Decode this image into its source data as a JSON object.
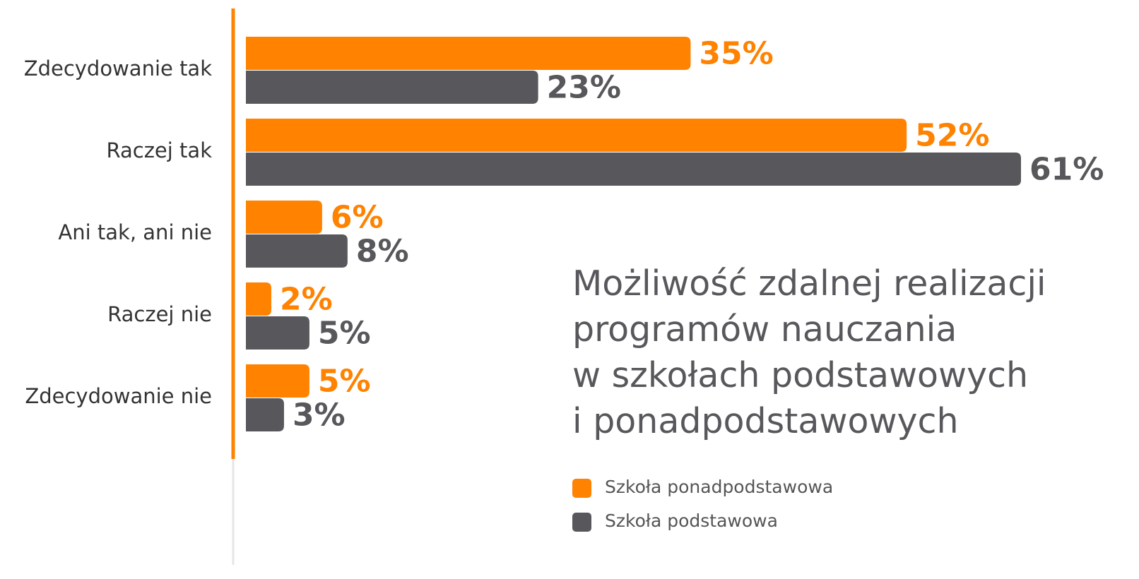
{
  "chart_data": {
    "type": "bar",
    "orientation": "horizontal",
    "title": [
      "Możliwość zdalnej realizacji",
      "programów nauczania",
      "w szkołach podstawowych",
      "i ponadpodstawowych"
    ],
    "categories": [
      "Zdecydowanie tak",
      "Raczej tak",
      "Ani tak, ani nie",
      "Raczej nie",
      "Zdecydowanie nie"
    ],
    "series": [
      {
        "name": "Szkoła ponadpodstawowa",
        "color": "#ff8200",
        "values": [
          35,
          52,
          6,
          2,
          5
        ],
        "value_labels": [
          "35%",
          "52%",
          "6%",
          "2%",
          "5%"
        ]
      },
      {
        "name": "Szkoła podstawowa",
        "color": "#58585c",
        "values": [
          23,
          61,
          8,
          5,
          3
        ],
        "value_labels": [
          "23%",
          "61%",
          "8%",
          "5%",
          "3%"
        ]
      }
    ]
  }
}
